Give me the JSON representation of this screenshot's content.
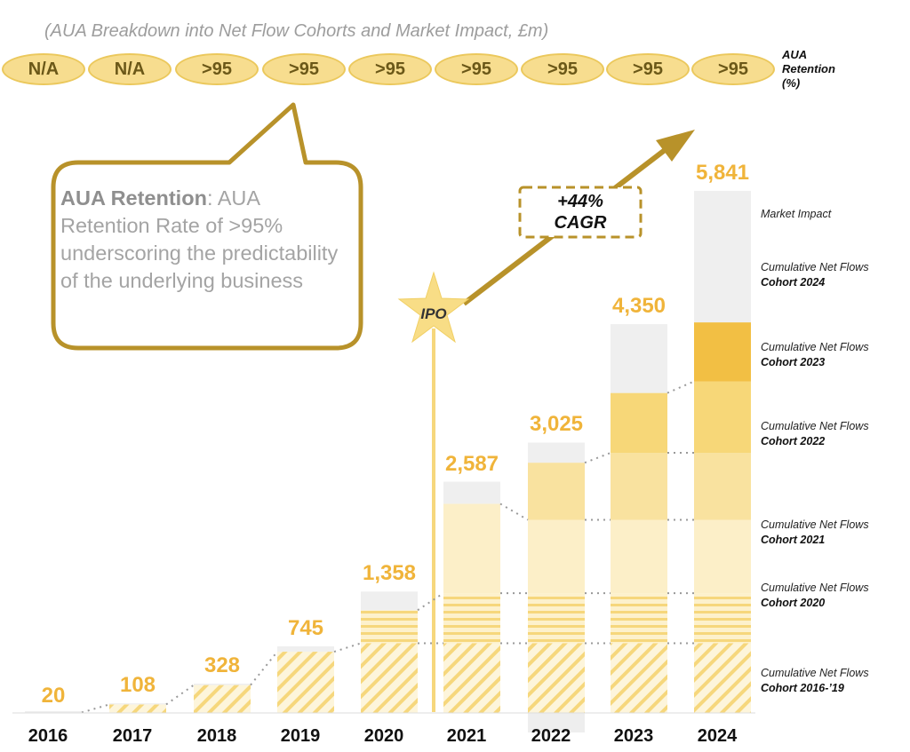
{
  "subtitle": "(AUA Breakdown into Net Flow Cohorts and Market Impact, £m)",
  "retention": {
    "values": [
      "N/A",
      "N/A",
      ">95",
      ">95",
      ">95",
      ">95",
      ">95",
      ">95",
      ">95"
    ],
    "label_line1": "AUA",
    "label_line2": "Retention",
    "label_line3": "(%)"
  },
  "callout": {
    "bold": "AUA Retention",
    "text": ": AUA Retention Rate of >95% underscoring the predictability of the underlying business"
  },
  "cagr": {
    "line1": "+44%",
    "line2": "CAGR"
  },
  "ipo_label": "IPO",
  "chart_data": {
    "type": "bar",
    "stacked": true,
    "unit": "£m",
    "categories": [
      "2016",
      "2017",
      "2018",
      "2019",
      "2020",
      "2021",
      "2022",
      "2023",
      "2024"
    ],
    "totals": [
      20,
      108,
      328,
      745,
      1358,
      2587,
      3025,
      4350,
      5841
    ],
    "totals_labels": [
      "20",
      "108",
      "328",
      "745",
      "1,358",
      "2,587",
      "3,025",
      "4,350",
      "5,841"
    ],
    "ylim": [
      0,
      6000
    ],
    "series": [
      {
        "name": "Cumulative Net Flows Cohort 2016-’19",
        "values": [
          5,
          95,
          312,
          685,
          780,
          780,
          780,
          780,
          780
        ]
      },
      {
        "name": "Cumulative Net Flows Cohort 2020",
        "values": [
          0,
          0,
          0,
          0,
          370,
          560,
          560,
          560,
          560
        ]
      },
      {
        "name": "Cumulative Net Flows Cohort 2021",
        "values": [
          0,
          0,
          0,
          0,
          0,
          1000,
          820,
          820,
          820
        ]
      },
      {
        "name": "Cumulative Net Flows Cohort 2022",
        "values": [
          0,
          0,
          0,
          0,
          0,
          0,
          640,
          750,
          750
        ]
      },
      {
        "name": "Cumulative Net Flows Cohort 2023",
        "values": [
          0,
          0,
          0,
          0,
          0,
          0,
          0,
          670,
          800
        ]
      },
      {
        "name": "Cumulative Net Flows Cohort 2024",
        "values": [
          0,
          0,
          0,
          0,
          0,
          0,
          0,
          0,
          660
        ]
      },
      {
        "name": "Market Impact",
        "values": [
          15,
          13,
          16,
          60,
          208,
          247,
          225,
          770,
          1471
        ]
      }
    ],
    "colors": {
      "cohort_2016_19": "#f6d77c",
      "cohort_2020": "#f6d77c",
      "cohort_2021": "#fcefc8",
      "cohort_2022": "#f9e29f",
      "cohort_2023": "#f7d778",
      "cohort_2024": "#f2bf44",
      "market_impact": "#efefef",
      "accent": "#f0b43a",
      "arrow": "#b8922a"
    },
    "legend": [
      {
        "line1": "Market Impact",
        "line2": ""
      },
      {
        "line1": "Cumulative Net Flows",
        "line2": "Cohort 2024"
      },
      {
        "line1": "Cumulative Net Flows",
        "line2": "Cohort 2023"
      },
      {
        "line1": "Cumulative Net Flows",
        "line2": "Cohort 2022"
      },
      {
        "line1": "Cumulative Net Flows",
        "line2": "Cohort 2021"
      },
      {
        "line1": "Cumulative Net Flows",
        "line2": "Cohort 2020"
      },
      {
        "line1": "Cumulative Net Flows",
        "line2": "Cohort 2016-’19"
      }
    ]
  }
}
